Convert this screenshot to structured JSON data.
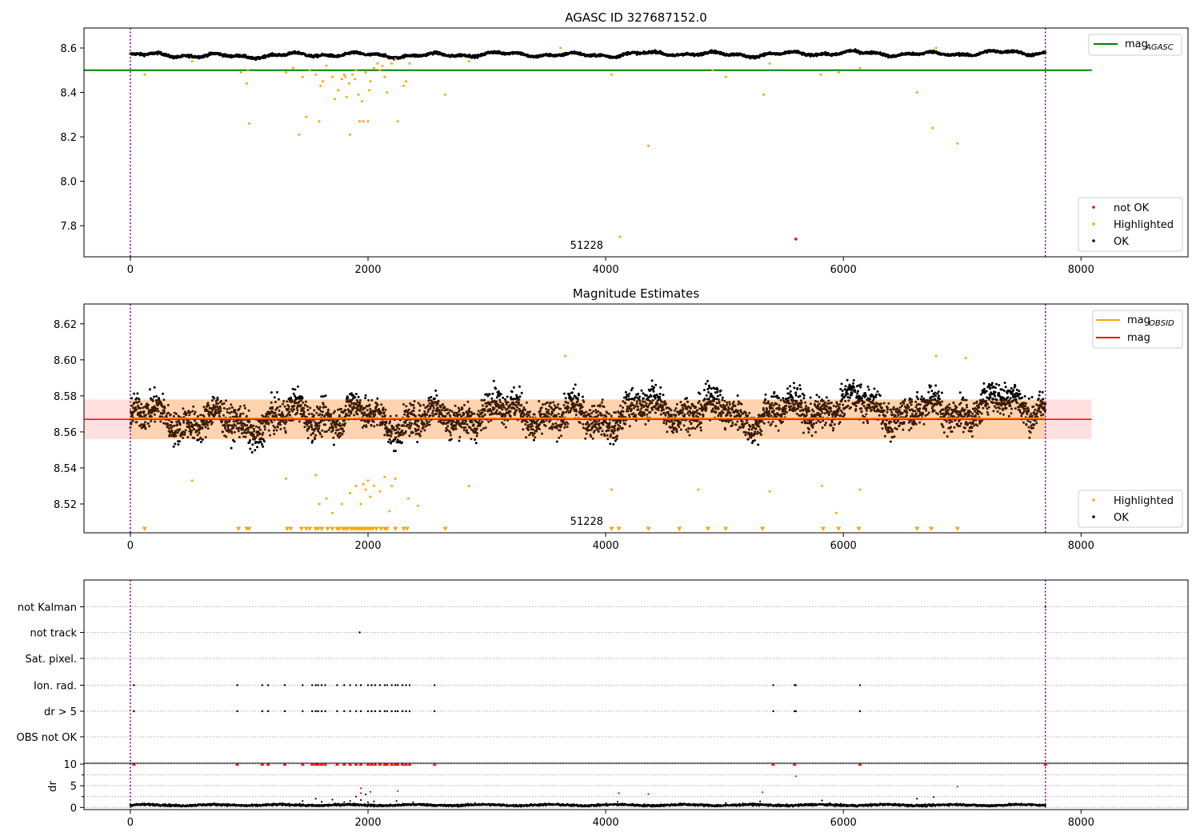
{
  "chart_data": [
    {
      "type": "scatter",
      "title": "AGASC ID 327687152.0",
      "xlim": [
        -390,
        8900
      ],
      "ylim": [
        7.66,
        8.69
      ],
      "xticks": [
        0,
        2000,
        4000,
        6000,
        8000
      ],
      "yticks": [
        7.8,
        8.0,
        8.2,
        8.4,
        8.6
      ],
      "tick_decimals": 1,
      "obs_lines": [
        0,
        7700
      ],
      "annotation": {
        "text": "51228",
        "x": 3840,
        "y": 7.7
      },
      "mag_agasc": {
        "value": 8.5,
        "x_range": [
          -390,
          8090
        ],
        "color": "#008000"
      },
      "legend_top": [
        {
          "label": "mag",
          "sub": "AGASC",
          "color": "#008000"
        }
      ],
      "legend_bottom": [
        {
          "label": "not OK",
          "color": "#ff0000"
        },
        {
          "label": "Highlighted",
          "color": "#ffa500"
        },
        {
          "label": "OK",
          "color": "#000000"
        }
      ],
      "series": [
        {
          "name": "OK",
          "color": "#000000",
          "band": {
            "y0": 8.565,
            "amp": 0.013,
            "noise": 0.009,
            "x0": 0,
            "x1": 7700,
            "n": 2600
          }
        },
        {
          "name": "Highlighted",
          "color": "#ffa500",
          "points": [
            [
              120,
              8.48
            ],
            [
              520,
              8.54
            ],
            [
              930,
              8.49
            ],
            [
              980,
              8.44
            ],
            [
              990,
              8.5
            ],
            [
              1000,
              8.26
            ],
            [
              1310,
              8.49
            ],
            [
              1370,
              8.51
            ],
            [
              1420,
              8.21
            ],
            [
              1450,
              8.47
            ],
            [
              1480,
              8.29
            ],
            [
              1510,
              8.5
            ],
            [
              1560,
              8.48
            ],
            [
              1590,
              8.27
            ],
            [
              1600,
              8.43
            ],
            [
              1620,
              8.45
            ],
            [
              1650,
              8.52
            ],
            [
              1700,
              8.47
            ],
            [
              1720,
              8.37
            ],
            [
              1750,
              8.41
            ],
            [
              1780,
              8.46
            ],
            [
              1800,
              8.48
            ],
            [
              1810,
              8.47
            ],
            [
              1820,
              8.38
            ],
            [
              1840,
              8.44
            ],
            [
              1850,
              8.21
            ],
            [
              1870,
              8.48
            ],
            [
              1890,
              8.46
            ],
            [
              1900,
              8.5
            ],
            [
              1920,
              8.39
            ],
            [
              1930,
              8.27
            ],
            [
              1950,
              8.36
            ],
            [
              1960,
              8.27
            ],
            [
              1980,
              8.49
            ],
            [
              2000,
              8.27
            ],
            [
              2010,
              8.41
            ],
            [
              2020,
              8.45
            ],
            [
              2050,
              8.51
            ],
            [
              2080,
              8.53
            ],
            [
              2100,
              8.5
            ],
            [
              2120,
              8.52
            ],
            [
              2140,
              8.47
            ],
            [
              2160,
              8.4
            ],
            [
              2200,
              8.53
            ],
            [
              2230,
              8.55
            ],
            [
              2250,
              8.27
            ],
            [
              2300,
              8.43
            ],
            [
              2320,
              8.45
            ],
            [
              2350,
              8.53
            ],
            [
              2650,
              8.39
            ],
            [
              2850,
              8.54
            ],
            [
              3620,
              8.6
            ],
            [
              4050,
              8.48
            ],
            [
              4120,
              7.75
            ],
            [
              4360,
              8.16
            ],
            [
              4900,
              8.5
            ],
            [
              5010,
              8.47
            ],
            [
              5330,
              8.39
            ],
            [
              5380,
              8.53
            ],
            [
              5810,
              8.48
            ],
            [
              5960,
              8.49
            ],
            [
              6140,
              8.51
            ],
            [
              6620,
              8.4
            ],
            [
              6750,
              8.24
            ],
            [
              6780,
              8.6
            ],
            [
              6960,
              8.17
            ]
          ]
        },
        {
          "name": "not OK",
          "color": "#ff0000",
          "points": [
            [
              5600,
              7.74
            ]
          ]
        }
      ]
    },
    {
      "type": "scatter",
      "title": "Magnitude Estimates",
      "xlim": [
        -390,
        8900
      ],
      "ylim": [
        8.504,
        8.631
      ],
      "xticks": [
        0,
        2000,
        4000,
        6000,
        8000
      ],
      "yticks": [
        8.52,
        8.54,
        8.56,
        8.58,
        8.6,
        8.62
      ],
      "tick_decimals": 2,
      "obs_lines": [
        0,
        7700
      ],
      "annotation": {
        "text": "51228",
        "x": 3840,
        "y": 8.508
      },
      "mag": {
        "value": 8.567,
        "lo": 8.556,
        "hi": 8.578,
        "x_range": [
          -390,
          8090
        ],
        "color": "#ff0000"
      },
      "mag_obsid": {
        "value": 8.567,
        "lo": 8.556,
        "hi": 8.578,
        "x_range": [
          0,
          7700
        ],
        "color": "#ffa500"
      },
      "legend_top": [
        {
          "label": "mag",
          "sub": "OBSID",
          "color": "#ffa500"
        },
        {
          "label": "mag",
          "sub": "",
          "color": "#ff0000"
        }
      ],
      "legend_bottom": [
        {
          "label": "Highlighted",
          "color": "#ffa500"
        },
        {
          "label": "OK",
          "color": "#000000"
        }
      ],
      "series": [
        {
          "name": "OK",
          "color": "#000000",
          "band": {
            "y0": 8.566,
            "amp": 0.009,
            "noise": 0.0065,
            "x0": 0,
            "x1": 7700,
            "n": 4200
          }
        },
        {
          "name": "Highlighted",
          "color": "#ffa500",
          "points": [
            [
              520,
              8.533
            ],
            [
              1310,
              8.534
            ],
            [
              1560,
              8.536
            ],
            [
              1590,
              8.52
            ],
            [
              1650,
              8.523
            ],
            [
              1700,
              8.515
            ],
            [
              1780,
              8.52
            ],
            [
              1850,
              8.526
            ],
            [
              1900,
              8.53
            ],
            [
              1940,
              8.52
            ],
            [
              1960,
              8.531
            ],
            [
              1980,
              8.528
            ],
            [
              2000,
              8.533
            ],
            [
              2020,
              8.524
            ],
            [
              2050,
              8.53
            ],
            [
              2100,
              8.527
            ],
            [
              2140,
              8.535
            ],
            [
              2180,
              8.516
            ],
            [
              2200,
              8.53
            ],
            [
              2230,
              8.534
            ],
            [
              2340,
              8.523
            ],
            [
              2420,
              8.519
            ],
            [
              2850,
              8.53
            ],
            [
              3660,
              8.602
            ],
            [
              4050,
              8.528
            ],
            [
              4780,
              8.528
            ],
            [
              5380,
              8.527
            ],
            [
              5820,
              8.53
            ],
            [
              5940,
              8.515
            ],
            [
              6140,
              8.528
            ],
            [
              6780,
              8.602
            ],
            [
              7030,
              8.601
            ]
          ]
        },
        {
          "name": "Highlighted-clipped",
          "color": "#ffa500",
          "marker": "triangle-down",
          "y": 8.506,
          "xs": [
            120,
            910,
            980,
            1000,
            1320,
            1350,
            1440,
            1480,
            1510,
            1560,
            1580,
            1610,
            1660,
            1700,
            1740,
            1760,
            1790,
            1810,
            1830,
            1860,
            1880,
            1900,
            1920,
            1940,
            1960,
            1980,
            2000,
            2020,
            2040,
            2070,
            2110,
            2140,
            2160,
            2230,
            2300,
            2330,
            2650,
            4050,
            4110,
            4360,
            4620,
            4860,
            5010,
            5320,
            5830,
            5960,
            6130,
            6620,
            6740,
            6960
          ]
        }
      ]
    },
    {
      "type": "scatter",
      "xlim": [
        -390,
        8900
      ],
      "obs_lines": [
        0,
        7700
      ],
      "flags": {
        "categories": [
          "not Kalman",
          "not track",
          "Sat. pixel.",
          "Ion. rad.",
          "dr > 5",
          "OBS not OK"
        ],
        "points": {
          "not Kalman": [
            7700
          ],
          "not track": [
            1930
          ],
          "Sat. pixel.": [],
          "Ion. rad.": [
            30,
            900,
            1110,
            1160,
            1300,
            1450,
            1530,
            1560,
            1580,
            1610,
            1640,
            1740,
            1800,
            1850,
            1900,
            1940,
            2000,
            2030,
            2060,
            2100,
            2140,
            2160,
            2200,
            2230,
            2250,
            2290,
            2320,
            2350,
            2560,
            5410,
            5590,
            5600,
            6140
          ],
          "dr > 5": [
            30,
            900,
            1110,
            1160,
            1300,
            1450,
            1530,
            1560,
            1580,
            1610,
            1640,
            1740,
            1800,
            1850,
            1900,
            1940,
            2000,
            2030,
            2060,
            2100,
            2140,
            2160,
            2200,
            2230,
            2250,
            2290,
            2320,
            2350,
            2560,
            5410,
            5590,
            5600,
            6140
          ],
          "OBS not OK": []
        }
      },
      "dr": {
        "ylabel": "dr",
        "ylim": [
          -0.5,
          10.2
        ],
        "yticks": [
          0,
          5,
          10
        ],
        "ok_band": {
          "y0": 0.55,
          "amp": 0.25,
          "noise": 0.25,
          "x0": 0,
          "x1": 7700,
          "n": 2200
        },
        "scattered": [
          [
            1450,
            1.5
          ],
          [
            1560,
            2
          ],
          [
            1610,
            1.3
          ],
          [
            1700,
            1.8
          ],
          [
            1800,
            1.2
          ],
          [
            1850,
            1.5
          ],
          [
            1900,
            2.5
          ],
          [
            1940,
            1.7
          ],
          [
            1980,
            3
          ],
          [
            2000,
            1.2
          ],
          [
            2050,
            1.4
          ],
          [
            2240,
            1.5
          ],
          [
            2380,
            1.2
          ],
          [
            2900,
            1
          ],
          [
            4100,
            1.3
          ],
          [
            5010,
            1
          ],
          [
            5300,
            1.4
          ],
          [
            5820,
            1.6
          ],
          [
            6620,
            2
          ],
          [
            6760,
            2.4
          ]
        ],
        "clipped_x": [
          30,
          900,
          1110,
          1160,
          1300,
          1450,
          1530,
          1560,
          1580,
          1610,
          1640,
          1740,
          1800,
          1850,
          1900,
          1940,
          2000,
          2030,
          2060,
          2100,
          2140,
          2160,
          2200,
          2230,
          2250,
          2290,
          2320,
          2350,
          2560,
          5410,
          5590,
          6140,
          7700
        ],
        "red_points": [
          [
            1940,
            4.4
          ],
          [
            1940,
            3.3
          ],
          [
            2020,
            3.6
          ],
          [
            2250,
            3.8
          ],
          [
            4110,
            3.3
          ],
          [
            4360,
            3.1
          ],
          [
            5320,
            3.5
          ],
          [
            5600,
            7.2
          ],
          [
            6960,
            4.8
          ],
          [
            7700,
            9.8
          ]
        ]
      }
    }
  ]
}
